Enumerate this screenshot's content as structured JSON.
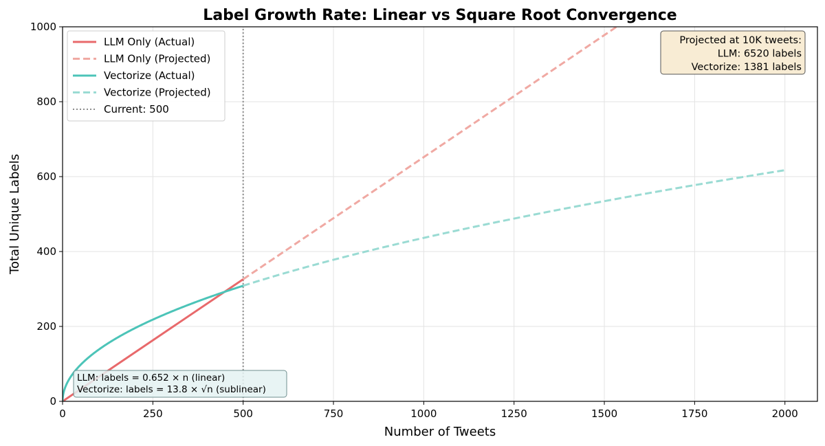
{
  "chart_data": {
    "type": "line",
    "title": "Label Growth Rate: Linear vs Square Root Convergence",
    "xlabel": "Number of Tweets",
    "ylabel": "Total Unique Labels",
    "xlim": [
      0,
      2090
    ],
    "ylim": [
      0,
      1000
    ],
    "xticks": [
      0,
      250,
      500,
      750,
      1000,
      1250,
      1500,
      1750,
      2000
    ],
    "yticks": [
      0,
      200,
      400,
      600,
      800,
      1000
    ],
    "grid": true,
    "legend_position": "top-left",
    "series": [
      {
        "name": "LLM Only (Actual)",
        "color": "#e8696b",
        "style": "solid",
        "x": [
          0,
          500
        ],
        "y": [
          0,
          326
        ]
      },
      {
        "name": "LLM Only (Projected)",
        "color": "#f0a9a3",
        "style": "dashed",
        "x": [
          500,
          1000,
          1534
        ],
        "y": [
          326,
          652,
          1000
        ]
      },
      {
        "name": "Vectorize (Actual)",
        "color": "#4cc4b8",
        "style": "solid",
        "x": [
          0,
          1,
          5,
          10,
          25,
          50,
          75,
          100,
          150,
          200,
          250,
          300,
          350,
          400,
          450,
          500
        ],
        "y": [
          0,
          13.8,
          30.9,
          43.6,
          69,
          97.6,
          119.5,
          138,
          169,
          195.2,
          218.2,
          239,
          258.2,
          276,
          292.8,
          308.6
        ]
      },
      {
        "name": "Vectorize (Projected)",
        "color": "#9adbd3",
        "style": "dashed",
        "x": [
          500,
          750,
          1000,
          1250,
          1500,
          1750,
          2000
        ],
        "y": [
          308.6,
          378,
          436.4,
          487.9,
          534.5,
          577.3,
          617.2
        ]
      },
      {
        "name": "Current: 500",
        "color": "#8c8c8c",
        "style": "dotted",
        "x": [
          500,
          500
        ],
        "y": [
          0,
          1000
        ]
      }
    ],
    "annotations": {
      "projection_box": {
        "lines": [
          "Projected at 10K tweets:",
          "LLM: 6520 labels",
          "Vectorize: 1381 labels"
        ],
        "position": "top-right",
        "background": "#f8ecd4",
        "border": "#555555"
      },
      "formula_box": {
        "lines": [
          "LLM: labels = 0.652 × n (linear)",
          "Vectorize: labels = 13.8 × √n (sublinear)"
        ],
        "position": "bottom-left",
        "background": "#e4f2f2",
        "border": "#6f8f8f"
      }
    }
  }
}
